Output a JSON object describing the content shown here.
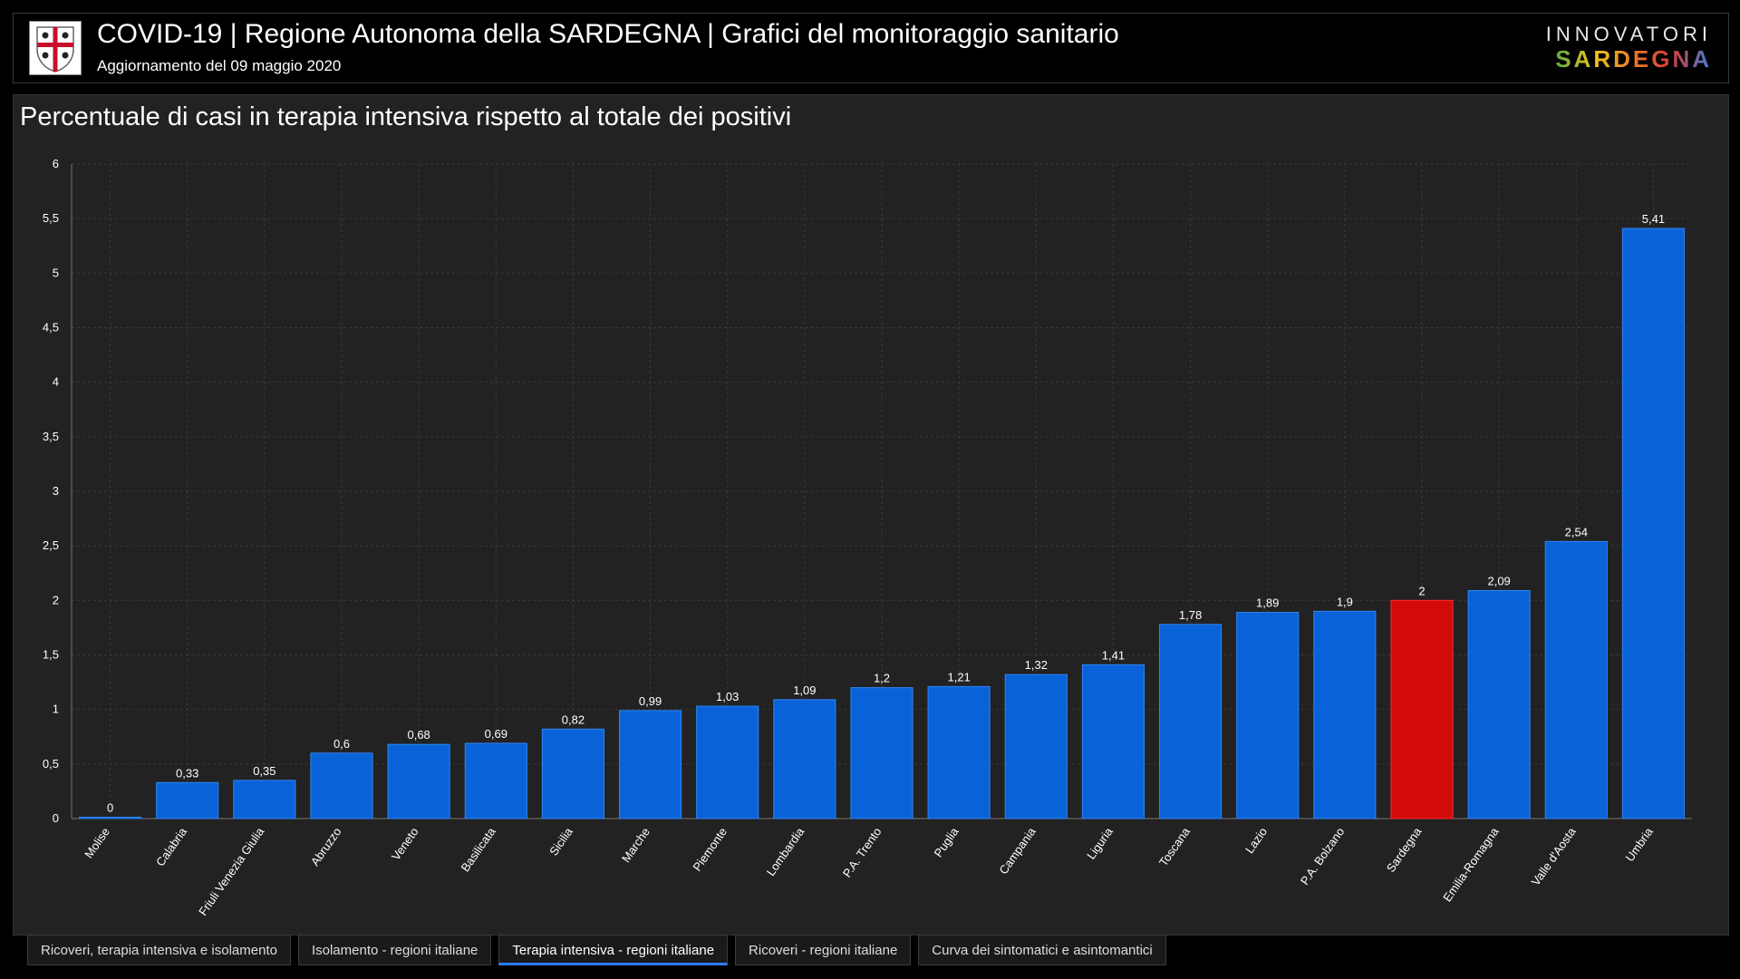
{
  "header": {
    "title": "COVID-19 | Regione Autonoma della SARDEGNA | Grafici del monitoraggio sanitario",
    "subtitle": "Aggiornamento del 09 maggio 2020",
    "logo_top": "INNOVATORI",
    "logo_bottom": "SARDEGNA"
  },
  "colors": {
    "bar": "#0a62d8",
    "bar_border": "#2f86f5",
    "highlight": "#d30a0a",
    "highlight_border": "#ff2a2a",
    "grid": "#3a3a3a",
    "text": "#ffffff"
  },
  "chart_data": {
    "type": "bar",
    "title": "Percentuale di casi in terapia intensiva rispetto al totale dei positivi",
    "categories": [
      "Molise",
      "Calabria",
      "Friuli Venezia Giulia",
      "Abruzzo",
      "Veneto",
      "Basilicata",
      "Sicilia",
      "Marche",
      "Piemonte",
      "Lombardia",
      "P.A. Trento",
      "Puglia",
      "Campania",
      "Liguria",
      "Toscana",
      "Lazio",
      "P.A. Bolzano",
      "Sardegna",
      "Emilia-Romagna",
      "Valle d'Aosta",
      "Umbria"
    ],
    "values": [
      0,
      0.33,
      0.35,
      0.6,
      0.68,
      0.69,
      0.82,
      0.99,
      1.03,
      1.09,
      1.2,
      1.21,
      1.32,
      1.41,
      1.78,
      1.89,
      1.9,
      2,
      2.09,
      2.54,
      5.41
    ],
    "value_labels": [
      "0",
      "0,33",
      "0,35",
      "0,6",
      "0,68",
      "0,69",
      "0,82",
      "0,99",
      "1,03",
      "1,09",
      "1,2",
      "1,21",
      "1,32",
      "1,41",
      "1,78",
      "1,89",
      "1,9",
      "2",
      "2,09",
      "2,54",
      "5,41"
    ],
    "highlight": "Sardegna",
    "ylim": [
      0,
      6
    ],
    "yticks": [
      0,
      0.5,
      1,
      1.5,
      2,
      2.5,
      3,
      3.5,
      4,
      4.5,
      5,
      5.5,
      6
    ],
    "ytick_labels": [
      "0",
      "0,5",
      "1",
      "1,5",
      "2",
      "2,5",
      "3",
      "3,5",
      "4",
      "4,5",
      "5",
      "5,5",
      "6"
    ],
    "grid": true,
    "xlabel": "",
    "ylabel": ""
  },
  "tabs": [
    {
      "label": "Ricoveri, terapia intensiva e isolamento",
      "active": false
    },
    {
      "label": "Isolamento - regioni italiane",
      "active": false
    },
    {
      "label": "Terapia intensiva - regioni italiane",
      "active": true
    },
    {
      "label": "Ricoveri - regioni italiane",
      "active": false
    },
    {
      "label": "Curva dei sintomatici e asintomantici",
      "active": false
    }
  ]
}
